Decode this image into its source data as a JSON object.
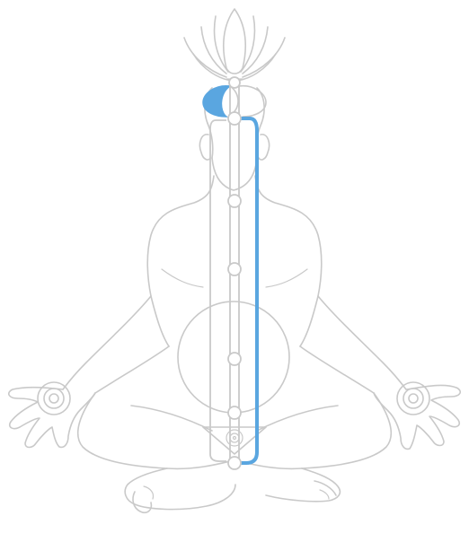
{
  "colors": {
    "line": "#c9c9c9",
    "accent": "#5aa6e0",
    "background": "#ffffff"
  },
  "icons": {
    "crown": "lotus-icon",
    "left_hand": "palm-spiral-icon",
    "right_hand": "palm-spiral-icon",
    "base": "triangle-spiral-icon"
  },
  "chakra_count": 7
}
